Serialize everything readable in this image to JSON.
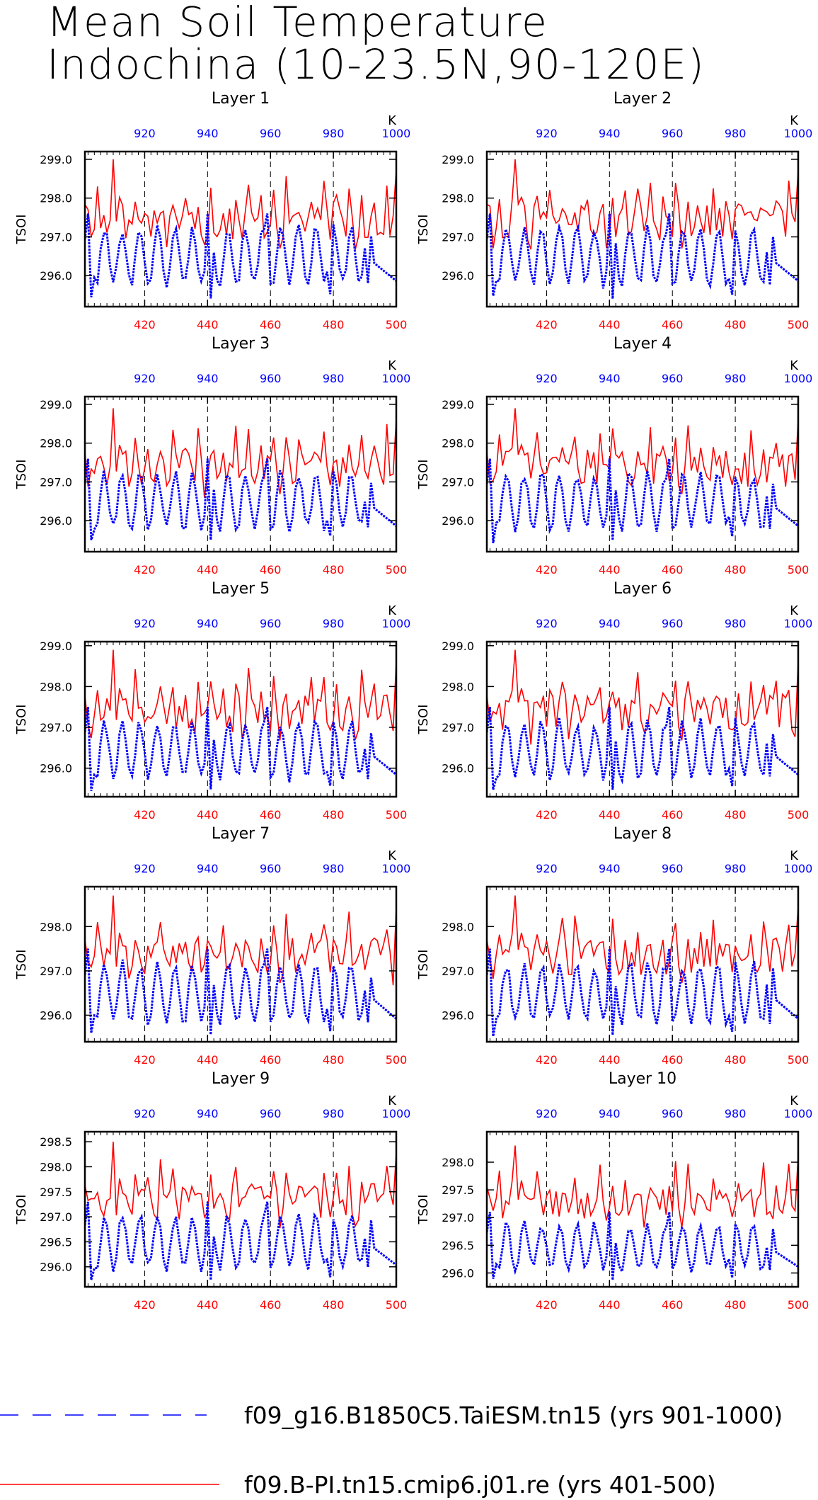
{
  "figure": {
    "title": [
      "Mean Soil Temperature",
      "Indochina (10-23.5N,90-120E)"
    ],
    "colors": {
      "top_axis": "#0000ff",
      "bottom_axis": "#ff0000",
      "series_blue": "#0000ff",
      "series_red": "#ff0000"
    },
    "legend": [
      {
        "label": "f09_g16.B1850C5.TaiESM.tn15 (yrs 901-1000)",
        "color": "#0000ff",
        "style": "dashed"
      },
      {
        "label": "f09.B-PI.tn15.cmip6.j01.re (yrs 401-500)",
        "color": "#ff0000",
        "style": "solid"
      }
    ]
  },
  "chart_data": [
    {
      "type": "line",
      "title": "Layer 1",
      "ylabel": "TSOI",
      "top_axis_unit": "K",
      "xlim_bottom": [
        401,
        500
      ],
      "xlim_top": [
        901,
        1000
      ],
      "bottom_ticks": [
        "420",
        "440",
        "460",
        "480",
        "500"
      ],
      "top_ticks": [
        "920",
        "940",
        "960",
        "980",
        "1000"
      ],
      "ylim": [
        295.2,
        299.2
      ],
      "yticks": [
        "296.0",
        "297.0",
        "298.0",
        "299.0"
      ],
      "series": [
        {
          "name": "f09.B-PI.tn15.cmip6.j01.re (yrs 401-500)",
          "axis": "bottom",
          "color": "#ff0000",
          "style": "solid",
          "range": [
            296.2,
            299.0
          ]
        },
        {
          "name": "f09_g16.B1850C5.TaiESM.tn15 (yrs 901-1000)",
          "axis": "top",
          "color": "#0000ff",
          "style": "dashed",
          "range": [
            295.4,
            297.6
          ]
        }
      ]
    },
    {
      "type": "line",
      "title": "Layer 2",
      "ylabel": "TSOI",
      "top_axis_unit": "K",
      "xlim_bottom": [
        401,
        500
      ],
      "xlim_top": [
        901,
        1000
      ],
      "bottom_ticks": [
        "420",
        "440",
        "460",
        "480",
        "500"
      ],
      "top_ticks": [
        "920",
        "940",
        "960",
        "980",
        "1000"
      ],
      "ylim": [
        295.2,
        299.2
      ],
      "yticks": [
        "296.0",
        "297.0",
        "298.0",
        "299.0"
      ],
      "series": [
        {
          "name": "f09.B-PI.tn15.cmip6.j01.re (yrs 401-500)",
          "axis": "bottom",
          "color": "#ff0000",
          "style": "solid",
          "range": [
            296.2,
            299.0
          ]
        },
        {
          "name": "f09_g16.B1850C5.TaiESM.tn15 (yrs 901-1000)",
          "axis": "top",
          "color": "#0000ff",
          "style": "dashed",
          "range": [
            295.4,
            297.6
          ]
        }
      ]
    },
    {
      "type": "line",
      "title": "Layer 3",
      "ylabel": "TSOI",
      "top_axis_unit": "K",
      "xlim_bottom": [
        401,
        500
      ],
      "xlim_top": [
        901,
        1000
      ],
      "bottom_ticks": [
        "420",
        "440",
        "460",
        "480",
        "500"
      ],
      "top_ticks": [
        "920",
        "940",
        "960",
        "980",
        "1000"
      ],
      "ylim": [
        295.2,
        299.2
      ],
      "yticks": [
        "296.0",
        "297.0",
        "298.0",
        "299.0"
      ],
      "series": [
        {
          "name": "f09.B-PI.tn15.cmip6.j01.re (yrs 401-500)",
          "axis": "bottom",
          "color": "#ff0000",
          "style": "solid",
          "range": [
            296.2,
            298.9
          ]
        },
        {
          "name": "f09_g16.B1850C5.TaiESM.tn15 (yrs 901-1000)",
          "axis": "top",
          "color": "#0000ff",
          "style": "dashed",
          "range": [
            295.4,
            297.6
          ]
        }
      ]
    },
    {
      "type": "line",
      "title": "Layer 4",
      "ylabel": "TSOI",
      "top_axis_unit": "K",
      "xlim_bottom": [
        401,
        500
      ],
      "xlim_top": [
        901,
        1000
      ],
      "bottom_ticks": [
        "420",
        "440",
        "460",
        "480",
        "500"
      ],
      "top_ticks": [
        "920",
        "940",
        "960",
        "980",
        "1000"
      ],
      "ylim": [
        295.2,
        299.2
      ],
      "yticks": [
        "296.0",
        "297.0",
        "298.0",
        "299.0"
      ],
      "series": [
        {
          "name": "f09.B-PI.tn15.cmip6.j01.re (yrs 401-500)",
          "axis": "bottom",
          "color": "#ff0000",
          "style": "solid",
          "range": [
            296.2,
            298.9
          ]
        },
        {
          "name": "f09_g16.B1850C5.TaiESM.tn15 (yrs 901-1000)",
          "axis": "top",
          "color": "#0000ff",
          "style": "dashed",
          "range": [
            295.4,
            297.6
          ]
        }
      ]
    },
    {
      "type": "line",
      "title": "Layer 5",
      "ylabel": "TSOI",
      "top_axis_unit": "K",
      "xlim_bottom": [
        401,
        500
      ],
      "xlim_top": [
        901,
        1000
      ],
      "bottom_ticks": [
        "420",
        "440",
        "460",
        "480",
        "500"
      ],
      "top_ticks": [
        "920",
        "940",
        "960",
        "980",
        "1000"
      ],
      "ylim": [
        295.3,
        299.1
      ],
      "yticks": [
        "296.0",
        "297.0",
        "298.0",
        "299.0"
      ],
      "series": [
        {
          "name": "f09.B-PI.tn15.cmip6.j01.re (yrs 401-500)",
          "axis": "bottom",
          "color": "#ff0000",
          "style": "solid",
          "range": [
            296.2,
            298.9
          ]
        },
        {
          "name": "f09_g16.B1850C5.TaiESM.tn15 (yrs 901-1000)",
          "axis": "top",
          "color": "#0000ff",
          "style": "dashed",
          "range": [
            295.4,
            297.5
          ]
        }
      ]
    },
    {
      "type": "line",
      "title": "Layer 6",
      "ylabel": "TSOI",
      "top_axis_unit": "K",
      "xlim_bottom": [
        401,
        500
      ],
      "xlim_top": [
        901,
        1000
      ],
      "bottom_ticks": [
        "420",
        "440",
        "460",
        "480",
        "500"
      ],
      "top_ticks": [
        "920",
        "940",
        "960",
        "980",
        "1000"
      ],
      "ylim": [
        295.3,
        299.1
      ],
      "yticks": [
        "296.0",
        "297.0",
        "298.0",
        "299.0"
      ],
      "series": [
        {
          "name": "f09.B-PI.tn15.cmip6.j01.re (yrs 401-500)",
          "axis": "bottom",
          "color": "#ff0000",
          "style": "solid",
          "range": [
            296.2,
            298.9
          ]
        },
        {
          "name": "f09_g16.B1850C5.TaiESM.tn15 (yrs 901-1000)",
          "axis": "top",
          "color": "#0000ff",
          "style": "dashed",
          "range": [
            295.4,
            297.5
          ]
        }
      ]
    },
    {
      "type": "line",
      "title": "Layer 7",
      "ylabel": "TSOI",
      "top_axis_unit": "K",
      "xlim_bottom": [
        401,
        500
      ],
      "xlim_top": [
        901,
        1000
      ],
      "bottom_ticks": [
        "420",
        "440",
        "460",
        "480",
        "500"
      ],
      "top_ticks": [
        "920",
        "940",
        "960",
        "980",
        "1000"
      ],
      "ylim": [
        295.4,
        298.9
      ],
      "yticks": [
        "296.0",
        "297.0",
        "298.0"
      ],
      "series": [
        {
          "name": "f09.B-PI.tn15.cmip6.j01.re (yrs 401-500)",
          "axis": "bottom",
          "color": "#ff0000",
          "style": "solid",
          "range": [
            296.3,
            298.7
          ]
        },
        {
          "name": "f09_g16.B1850C5.TaiESM.tn15 (yrs 901-1000)",
          "axis": "top",
          "color": "#0000ff",
          "style": "dashed",
          "range": [
            295.5,
            297.5
          ]
        }
      ]
    },
    {
      "type": "line",
      "title": "Layer 8",
      "ylabel": "TSOI",
      "top_axis_unit": "K",
      "xlim_bottom": [
        401,
        500
      ],
      "xlim_top": [
        901,
        1000
      ],
      "bottom_ticks": [
        "420",
        "440",
        "460",
        "480",
        "500"
      ],
      "top_ticks": [
        "920",
        "940",
        "960",
        "980",
        "1000"
      ],
      "ylim": [
        295.4,
        298.9
      ],
      "yticks": [
        "296.0",
        "297.0",
        "298.0"
      ],
      "series": [
        {
          "name": "f09.B-PI.tn15.cmip6.j01.re (yrs 401-500)",
          "axis": "bottom",
          "color": "#ff0000",
          "style": "solid",
          "range": [
            296.3,
            298.7
          ]
        },
        {
          "name": "f09_g16.B1850C5.TaiESM.tn15 (yrs 901-1000)",
          "axis": "top",
          "color": "#0000ff",
          "style": "dashed",
          "range": [
            295.5,
            297.5
          ]
        }
      ]
    },
    {
      "type": "line",
      "title": "Layer 9",
      "ylabel": "TSOI",
      "top_axis_unit": "K",
      "xlim_bottom": [
        401,
        500
      ],
      "xlim_top": [
        901,
        1000
      ],
      "bottom_ticks": [
        "420",
        "440",
        "460",
        "480",
        "500"
      ],
      "top_ticks": [
        "920",
        "940",
        "960",
        "980",
        "1000"
      ],
      "ylim": [
        295.6,
        298.7
      ],
      "yticks": [
        "296.0",
        "296.5",
        "297.0",
        "297.5",
        "298.0",
        "298.5"
      ],
      "series": [
        {
          "name": "f09.B-PI.tn15.cmip6.j01.re (yrs 401-500)",
          "axis": "bottom",
          "color": "#ff0000",
          "style": "solid",
          "range": [
            296.4,
            298.5
          ]
        },
        {
          "name": "f09_g16.B1850C5.TaiESM.tn15 (yrs 901-1000)",
          "axis": "top",
          "color": "#0000ff",
          "style": "dashed",
          "range": [
            295.7,
            297.3
          ]
        }
      ]
    },
    {
      "type": "line",
      "title": "Layer 10",
      "ylabel": "TSOI",
      "top_axis_unit": "K",
      "xlim_bottom": [
        401,
        500
      ],
      "xlim_top": [
        901,
        1000
      ],
      "bottom_ticks": [
        "420",
        "440",
        "460",
        "480",
        "500"
      ],
      "top_ticks": [
        "920",
        "940",
        "960",
        "980",
        "1000"
      ],
      "ylim": [
        295.75,
        298.55
      ],
      "yticks": [
        "296.0",
        "296.5",
        "297.0",
        "297.5",
        "298.0"
      ],
      "series": [
        {
          "name": "f09.B-PI.tn15.cmip6.j01.re (yrs 401-500)",
          "axis": "bottom",
          "color": "#ff0000",
          "style": "solid",
          "range": [
            296.5,
            298.3
          ]
        },
        {
          "name": "f09_g16.B1850C5.TaiESM.tn15 (yrs 901-1000)",
          "axis": "top",
          "color": "#0000ff",
          "style": "dashed",
          "range": [
            295.85,
            297.1
          ]
        }
      ]
    }
  ]
}
